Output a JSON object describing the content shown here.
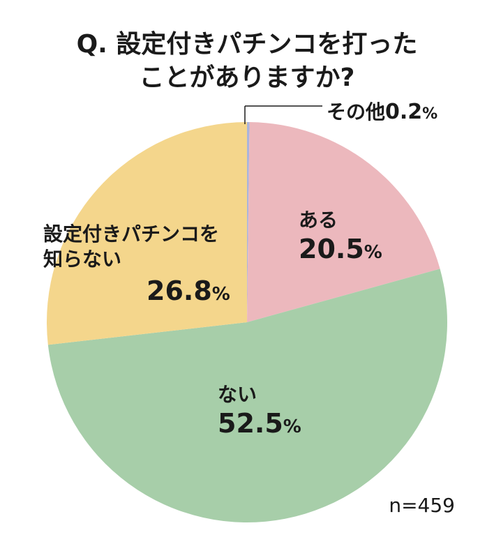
{
  "chart_data": {
    "type": "pie",
    "title": [
      "Q. 設定付きパチンコを打った",
      "ことがありますか?"
    ],
    "slices": [
      {
        "label": "その他",
        "value": 0.2,
        "color": "#a9b4dc"
      },
      {
        "label": "ある",
        "value": 20.5,
        "color": "#ecb8bd"
      },
      {
        "label": "ない",
        "value": 52.5,
        "color": "#a7cea9"
      },
      {
        "label_lines": [
          "設定付きパチンコを",
          "知らない"
        ],
        "value": 26.8,
        "color": "#f4d68c"
      }
    ],
    "value_format": {
      "unit": "%"
    },
    "note": "n=459"
  }
}
